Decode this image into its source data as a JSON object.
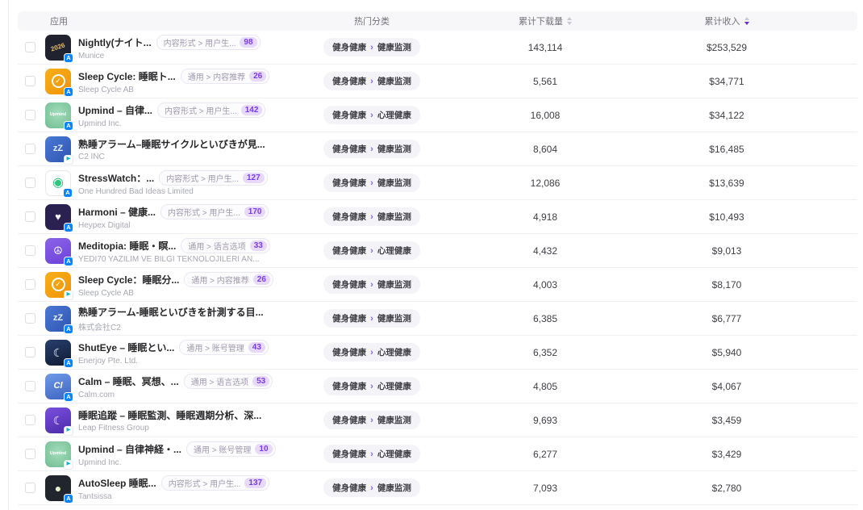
{
  "colors": {
    "accent_purple": "#6d28d9",
    "tag_count_text": "#7a3bec",
    "tag_count_bg": "#e7d9fb",
    "category_pill_bg": "#f4f4f8",
    "header_bg": "#f7f7f9",
    "row_border": "#eef0f3",
    "appstore_badge_blue": "#0a84ff",
    "googleplay_badge_teal": "#00b8d4"
  },
  "table": {
    "columns": {
      "app": "应用",
      "category": "热门分类",
      "downloads": "累计下载量",
      "revenue": "累计收入"
    },
    "sort": {
      "downloads": "none",
      "revenue": "desc"
    },
    "rows": [
      {
        "name": "Nightly(ナイト...",
        "developer": "Munice",
        "tag": "内容形式 > 用户生...",
        "tag_count": "98",
        "category_main": "健身健康",
        "category_sub": "健康监测",
        "downloads": "143,114",
        "revenue": "$253,529",
        "platform": "appstore",
        "icon": {
          "bg": "#20222f",
          "glyph": "2026",
          "fg": "#e8c06a",
          "fs": "8px",
          "rotate": true
        }
      },
      {
        "name": "Sleep Cycle: 睡眠ト...",
        "developer": "Sleep Cycle AB",
        "tag": "通用 > 内容推荐",
        "tag_count": "26",
        "category_main": "健身健康",
        "category_sub": "健康监测",
        "downloads": "5,561",
        "revenue": "$34,771",
        "platform": "appstore",
        "icon": {
          "bg": "linear-gradient(135deg,#f8b019,#ef9206)",
          "glyph": "✓",
          "fg": "#ffffff",
          "fs": "9px",
          "ring": true
        }
      },
      {
        "name": "Upmind – 自律...",
        "developer": "Upmind Inc.",
        "tag": "内容形式 > 用户生...",
        "tag_count": "142",
        "category_main": "健身健康",
        "category_sub": "心理健康",
        "downloads": "16,008",
        "revenue": "$34,122",
        "platform": "appstore",
        "icon": {
          "bg": "radial-gradient(circle at 50% 42%, #a4dcbb, #6fbd92)",
          "glyph": "Upmind",
          "fg": "#ffffff",
          "fs": "5.5px"
        }
      },
      {
        "name": "熟睡アラーム–睡眠サイクルといびきが見...",
        "developer": "C2 INC",
        "tag": null,
        "tag_count": null,
        "category_main": "健身健康",
        "category_sub": "健康监测",
        "downloads": "8,604",
        "revenue": "$16,485",
        "platform": "googleplay",
        "icon": {
          "bg": "linear-gradient(135deg,#4a79d6,#2f55b0)",
          "glyph": "zZ",
          "fg": "#e6edfb",
          "fs": "11px"
        }
      },
      {
        "name": "StressWatch：...",
        "developer": "One Hundred Bad Ideas Limited",
        "tag": "内容形式 > 用户生...",
        "tag_count": "127",
        "category_main": "健身健康",
        "category_sub": "健康监测",
        "downloads": "12,086",
        "revenue": "$13,639",
        "platform": "appstore",
        "icon": {
          "bg": "#ffffff",
          "glyph": "◉",
          "fg": "#2ec77e",
          "fs": "16px",
          "border": "#e8e9ee"
        }
      },
      {
        "name": "Harmoni – 健康...",
        "developer": "Heypex Digital",
        "tag": "内容形式 > 用户生...",
        "tag_count": "170",
        "category_main": "健身健康",
        "category_sub": "健康监测",
        "downloads": "4,918",
        "revenue": "$10,493",
        "platform": "appstore",
        "icon": {
          "bg": "#2b2150",
          "glyph": "♥",
          "fg": "#f5f2fa",
          "fs": "13px"
        }
      },
      {
        "name": "Meditopia: 睡眠・瞑...",
        "developer": "YEDI70 YAZILIM VE BILGI TEKNOLOJILERI AN...",
        "tag": "通用 > 语言选项",
        "tag_count": "33",
        "category_main": "健身健康",
        "category_sub": "心理健康",
        "downloads": "4,432",
        "revenue": "$9,013",
        "platform": "appstore",
        "icon": {
          "bg": "linear-gradient(160deg,#8a63e8,#6c42d8)",
          "glyph": "☮",
          "fg": "#ffffff",
          "fs": "13px"
        }
      },
      {
        "name": "Sleep Cycle：睡眠分...",
        "developer": "Sleep Cycle AB",
        "tag": "通用 > 内容推荐",
        "tag_count": "26",
        "category_main": "健身健康",
        "category_sub": "健康监测",
        "downloads": "4,003",
        "revenue": "$8,170",
        "platform": "googleplay",
        "icon": {
          "bg": "linear-gradient(135deg,#f8b019,#ef9206)",
          "glyph": "✓",
          "fg": "#ffffff",
          "fs": "9px",
          "ring": true
        }
      },
      {
        "name": "熟睡アラーム-睡眠といびきを計測する目...",
        "developer": "株式会社C2",
        "tag": null,
        "tag_count": null,
        "category_main": "健身健康",
        "category_sub": "健康监测",
        "downloads": "6,385",
        "revenue": "$6,777",
        "platform": "appstore",
        "icon": {
          "bg": "linear-gradient(135deg,#4a79d6,#2f55b0)",
          "glyph": "zZ",
          "fg": "#e6edfb",
          "fs": "11px"
        }
      },
      {
        "name": "ShutEye – 睡眠とい...",
        "developer": "Enerjoy Pte. Ltd.",
        "tag": "通用 > 账号管理",
        "tag_count": "43",
        "category_main": "健身健康",
        "category_sub": "心理健康",
        "downloads": "6,352",
        "revenue": "$5,940",
        "platform": "appstore",
        "icon": {
          "bg": "linear-gradient(160deg,#27406e,#101a33)",
          "glyph": "☾",
          "fg": "#ffffff",
          "fs": "14px"
        }
      },
      {
        "name": "Calm – 睡眠、冥想、...",
        "developer": "Calm.com",
        "tag": "通用 > 语言选项",
        "tag_count": "53",
        "category_main": "健身健康",
        "category_sub": "心理健康",
        "downloads": "4,805",
        "revenue": "$4,067",
        "platform": "appstore",
        "icon": {
          "bg": "linear-gradient(160deg,#6f9be8,#3d63c0)",
          "glyph": "Cl",
          "fg": "#ffffff",
          "fs": "11px",
          "italic": true
        }
      },
      {
        "name": "睡眠追蹤 – 睡眠監測、睡眠週期分析、深...",
        "developer": "Leap Fitness Group",
        "tag": null,
        "tag_count": null,
        "category_main": "健身健康",
        "category_sub": "健康监测",
        "downloads": "9,693",
        "revenue": "$3,459",
        "platform": "googleplay",
        "icon": {
          "bg": "linear-gradient(160deg,#7a4fe0,#4c2ba6)",
          "glyph": "☾",
          "fg": "#ffffff",
          "fs": "14px"
        }
      },
      {
        "name": "Upmind – 自律神経・...",
        "developer": "Upmind Inc.",
        "tag": "通用 > 账号管理",
        "tag_count": "10",
        "category_main": "健身健康",
        "category_sub": "心理健康",
        "downloads": "6,277",
        "revenue": "$3,429",
        "platform": "googleplay",
        "icon": {
          "bg": "radial-gradient(circle at 50% 42%, #a4dcbb, #6fbd92)",
          "glyph": "Upmind",
          "fg": "#ffffff",
          "fs": "5.5px"
        }
      },
      {
        "name": "AutoSleep 睡眠...",
        "developer": "Tantsissa",
        "tag": "内容形式 > 用户生...",
        "tag_count": "137",
        "category_main": "健身健康",
        "category_sub": "健康监测",
        "downloads": "7,093",
        "revenue": "$2,780",
        "platform": "appstore",
        "icon": {
          "bg": "#20252e",
          "glyph": "●",
          "fg": "#e9efc6",
          "fs": "14px"
        }
      }
    ]
  }
}
